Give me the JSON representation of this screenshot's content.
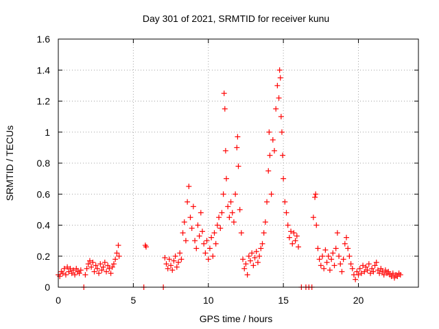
{
  "chart_data": {
    "type": "scatter",
    "title": "Day 301 of 2021, SRMTID for receiver kunu",
    "xlabel": "GPS time / hours",
    "ylabel": "SRMTID / TECUs",
    "xlim": [
      0,
      24
    ],
    "ylim": [
      0,
      1.6
    ],
    "grid": true,
    "marker": "plus",
    "series_color": "#ff0000",
    "xticks": [
      {
        "value": 0,
        "label": "0"
      },
      {
        "value": 5,
        "label": "5"
      },
      {
        "value": 10,
        "label": "10"
      },
      {
        "value": 15,
        "label": "15"
      },
      {
        "value": 20,
        "label": "20"
      }
    ],
    "yticks": [
      {
        "value": 0,
        "label": "0"
      },
      {
        "value": 0.2,
        "label": "0.2"
      },
      {
        "value": 0.4,
        "label": "0.4"
      },
      {
        "value": 0.6,
        "label": "0.6"
      },
      {
        "value": 0.8,
        "label": "0.8"
      },
      {
        "value": 1.0,
        "label": "1"
      },
      {
        "value": 1.2,
        "label": "1.2"
      },
      {
        "value": 1.4,
        "label": "1.4"
      },
      {
        "value": 1.6,
        "label": "1.6"
      }
    ],
    "series": [
      {
        "name": "SRMTID",
        "points": [
          [
            0.0,
            0.08
          ],
          [
            0.1,
            0.07
          ],
          [
            0.2,
            0.1
          ],
          [
            0.3,
            0.09
          ],
          [
            0.4,
            0.12
          ],
          [
            0.5,
            0.08
          ],
          [
            0.6,
            0.13
          ],
          [
            0.7,
            0.1
          ],
          [
            0.8,
            0.12
          ],
          [
            0.9,
            0.09
          ],
          [
            1.0,
            0.11
          ],
          [
            1.1,
            0.08
          ],
          [
            1.2,
            0.12
          ],
          [
            1.3,
            0.1
          ],
          [
            1.4,
            0.09
          ],
          [
            1.5,
            0.11
          ],
          [
            1.7,
            0.0
          ],
          [
            1.8,
            0.08
          ],
          [
            1.9,
            0.12
          ],
          [
            2.0,
            0.15
          ],
          [
            2.1,
            0.17
          ],
          [
            2.2,
            0.13
          ],
          [
            2.3,
            0.16
          ],
          [
            2.4,
            0.1
          ],
          [
            2.5,
            0.14
          ],
          [
            2.6,
            0.12
          ],
          [
            2.7,
            0.09
          ],
          [
            2.8,
            0.15
          ],
          [
            2.9,
            0.11
          ],
          [
            3.0,
            0.13
          ],
          [
            3.1,
            0.16
          ],
          [
            3.2,
            0.1
          ],
          [
            3.3,
            0.14
          ],
          [
            3.4,
            0.12
          ],
          [
            3.5,
            0.09
          ],
          [
            3.6,
            0.13
          ],
          [
            3.7,
            0.15
          ],
          [
            3.8,
            0.18
          ],
          [
            3.9,
            0.22
          ],
          [
            4.0,
            0.27
          ],
          [
            4.05,
            0.2
          ],
          [
            5.7,
            0.0
          ],
          [
            5.8,
            0.27
          ],
          [
            5.85,
            0.26
          ],
          [
            7.0,
            0.0
          ],
          [
            7.1,
            0.19
          ],
          [
            7.2,
            0.15
          ],
          [
            7.3,
            0.12
          ],
          [
            7.4,
            0.18
          ],
          [
            7.5,
            0.14
          ],
          [
            7.6,
            0.11
          ],
          [
            7.7,
            0.17
          ],
          [
            7.8,
            0.2
          ],
          [
            7.9,
            0.13
          ],
          [
            8.0,
            0.16
          ],
          [
            8.1,
            0.22
          ],
          [
            8.2,
            0.18
          ],
          [
            8.3,
            0.35
          ],
          [
            8.4,
            0.42
          ],
          [
            8.5,
            0.3
          ],
          [
            8.6,
            0.55
          ],
          [
            8.7,
            0.65
          ],
          [
            8.8,
            0.45
          ],
          [
            8.9,
            0.38
          ],
          [
            9.0,
            0.52
          ],
          [
            9.1,
            0.3
          ],
          [
            9.2,
            0.25
          ],
          [
            9.3,
            0.4
          ],
          [
            9.4,
            0.33
          ],
          [
            9.5,
            0.48
          ],
          [
            9.6,
            0.36
          ],
          [
            9.7,
            0.28
          ],
          [
            9.8,
            0.22
          ],
          [
            9.9,
            0.3
          ],
          [
            10.0,
            0.18
          ],
          [
            10.1,
            0.25
          ],
          [
            10.2,
            0.32
          ],
          [
            10.3,
            0.2
          ],
          [
            10.4,
            0.35
          ],
          [
            10.5,
            0.28
          ],
          [
            10.6,
            0.4
          ],
          [
            10.7,
            0.45
          ],
          [
            10.8,
            0.38
          ],
          [
            10.9,
            0.48
          ],
          [
            11.0,
            0.6
          ],
          [
            11.05,
            1.25
          ],
          [
            11.1,
            1.15
          ],
          [
            11.15,
            0.88
          ],
          [
            11.2,
            0.7
          ],
          [
            11.3,
            0.52
          ],
          [
            11.4,
            0.45
          ],
          [
            11.5,
            0.55
          ],
          [
            11.6,
            0.48
          ],
          [
            11.7,
            0.42
          ],
          [
            11.8,
            0.6
          ],
          [
            11.9,
            0.9
          ],
          [
            11.95,
            0.97
          ],
          [
            12.0,
            0.78
          ],
          [
            12.1,
            0.5
          ],
          [
            12.2,
            0.35
          ],
          [
            12.3,
            0.18
          ],
          [
            12.4,
            0.12
          ],
          [
            12.5,
            0.15
          ],
          [
            12.6,
            0.08
          ],
          [
            12.7,
            0.2
          ],
          [
            12.8,
            0.17
          ],
          [
            12.9,
            0.22
          ],
          [
            13.0,
            0.14
          ],
          [
            13.1,
            0.19
          ],
          [
            13.2,
            0.23
          ],
          [
            13.3,
            0.16
          ],
          [
            13.4,
            0.2
          ],
          [
            13.5,
            0.25
          ],
          [
            13.6,
            0.28
          ],
          [
            13.7,
            0.35
          ],
          [
            13.8,
            0.42
          ],
          [
            13.9,
            0.55
          ],
          [
            14.0,
            0.75
          ],
          [
            14.05,
            1.0
          ],
          [
            14.1,
            0.85
          ],
          [
            14.2,
            0.6
          ],
          [
            14.3,
            0.95
          ],
          [
            14.4,
            0.88
          ],
          [
            14.5,
            1.15
          ],
          [
            14.6,
            1.3
          ],
          [
            14.7,
            1.22
          ],
          [
            14.75,
            1.4
          ],
          [
            14.8,
            1.35
          ],
          [
            14.85,
            1.1
          ],
          [
            14.9,
            1.0
          ],
          [
            14.95,
            0.85
          ],
          [
            15.0,
            0.7
          ],
          [
            15.1,
            0.55
          ],
          [
            15.2,
            0.48
          ],
          [
            15.3,
            0.4
          ],
          [
            15.4,
            0.32
          ],
          [
            15.5,
            0.36
          ],
          [
            15.6,
            0.28
          ],
          [
            15.7,
            0.35
          ],
          [
            15.8,
            0.3
          ],
          [
            15.9,
            0.33
          ],
          [
            16.0,
            0.26
          ],
          [
            16.2,
            0.0
          ],
          [
            16.5,
            0.0
          ],
          [
            16.7,
            0.0
          ],
          [
            16.9,
            0.0
          ],
          [
            17.0,
            0.45
          ],
          [
            17.1,
            0.58
          ],
          [
            17.15,
            0.6
          ],
          [
            17.2,
            0.4
          ],
          [
            17.3,
            0.25
          ],
          [
            17.4,
            0.18
          ],
          [
            17.5,
            0.14
          ],
          [
            17.6,
            0.2
          ],
          [
            17.7,
            0.12
          ],
          [
            17.8,
            0.24
          ],
          [
            17.9,
            0.16
          ],
          [
            18.0,
            0.2
          ],
          [
            18.1,
            0.11
          ],
          [
            18.2,
            0.18
          ],
          [
            18.3,
            0.22
          ],
          [
            18.4,
            0.14
          ],
          [
            18.5,
            0.25
          ],
          [
            18.6,
            0.35
          ],
          [
            18.7,
            0.2
          ],
          [
            18.8,
            0.15
          ],
          [
            18.9,
            0.1
          ],
          [
            19.0,
            0.18
          ],
          [
            19.1,
            0.28
          ],
          [
            19.2,
            0.32
          ],
          [
            19.3,
            0.25
          ],
          [
            19.4,
            0.2
          ],
          [
            19.5,
            0.15
          ],
          [
            19.6,
            0.12
          ],
          [
            19.7,
            0.08
          ],
          [
            19.8,
            0.05
          ],
          [
            19.9,
            0.1
          ],
          [
            20.0,
            0.08
          ],
          [
            20.1,
            0.12
          ],
          [
            20.2,
            0.09
          ],
          [
            20.3,
            0.14
          ],
          [
            20.4,
            0.1
          ],
          [
            20.5,
            0.13
          ],
          [
            20.6,
            0.11
          ],
          [
            20.7,
            0.15
          ],
          [
            20.8,
            0.09
          ],
          [
            20.9,
            0.12
          ],
          [
            21.0,
            0.1
          ],
          [
            21.1,
            0.14
          ],
          [
            21.2,
            0.16
          ],
          [
            21.3,
            0.11
          ],
          [
            21.4,
            0.09
          ],
          [
            21.5,
            0.12
          ],
          [
            21.6,
            0.1
          ],
          [
            21.7,
            0.08
          ],
          [
            21.8,
            0.11
          ],
          [
            21.9,
            0.09
          ],
          [
            22.0,
            0.1
          ],
          [
            22.1,
            0.08
          ],
          [
            22.2,
            0.07
          ],
          [
            22.3,
            0.09
          ],
          [
            22.4,
            0.06
          ],
          [
            22.5,
            0.08
          ],
          [
            22.6,
            0.07
          ],
          [
            22.7,
            0.09
          ],
          [
            22.8,
            0.08
          ]
        ]
      }
    ]
  }
}
